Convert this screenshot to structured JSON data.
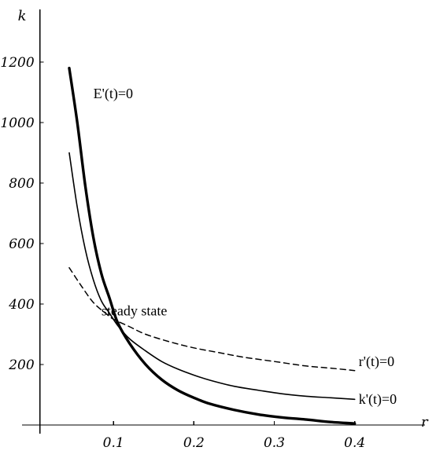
{
  "chart_data": {
    "type": "line",
    "title": "",
    "xlabel": "r",
    "ylabel": "k",
    "xlim": [
      0,
      0.46
    ],
    "ylim": [
      0,
      1200
    ],
    "x_ticks": [
      0.1,
      0.2,
      0.3,
      0.4
    ],
    "x_tick_labels": [
      "0.1",
      "0.2",
      "0.3",
      "0.4"
    ],
    "y_ticks": [
      200,
      400,
      600,
      800,
      1000,
      1200
    ],
    "y_tick_labels": [
      "200",
      "400",
      "600",
      "800",
      "1000",
      "1200"
    ],
    "grid": false,
    "series": [
      {
        "name": "E'(t)=0",
        "line_style": "solid-thick",
        "color": "#000000",
        "x": [
          0.045,
          0.055,
          0.065,
          0.075,
          0.085,
          0.095,
          0.105,
          0.12,
          0.14,
          0.16,
          0.18,
          0.2,
          0.22,
          0.25,
          0.28,
          0.31,
          0.34,
          0.37,
          0.4
        ],
        "y": [
          1180,
          1000,
          790,
          620,
          500,
          420,
          340,
          270,
          200,
          150,
          115,
          90,
          70,
          50,
          35,
          25,
          18,
          10,
          5
        ]
      },
      {
        "name": "k'(t)=0",
        "line_style": "solid-thin",
        "color": "#000000",
        "x": [
          0.045,
          0.055,
          0.065,
          0.075,
          0.085,
          0.095,
          0.105,
          0.12,
          0.14,
          0.16,
          0.18,
          0.2,
          0.22,
          0.25,
          0.28,
          0.31,
          0.34,
          0.37,
          0.4
        ],
        "y": [
          900,
          720,
          580,
          480,
          410,
          370,
          330,
          285,
          245,
          210,
          185,
          165,
          148,
          128,
          115,
          103,
          95,
          90,
          85
        ]
      },
      {
        "name": "r'(t)=0",
        "line_style": "dashed",
        "color": "#000000",
        "x": [
          0.045,
          0.06,
          0.075,
          0.09,
          0.1,
          0.12,
          0.14,
          0.17,
          0.2,
          0.23,
          0.26,
          0.3,
          0.34,
          0.37,
          0.4
        ],
        "y": [
          520,
          460,
          405,
          370,
          350,
          325,
          300,
          275,
          255,
          240,
          225,
          210,
          195,
          188,
          180
        ]
      }
    ],
    "annotations": [
      {
        "text": "E'(t)=0",
        "x": 0.075,
        "y": 1080
      },
      {
        "text": "steady state",
        "x": 0.085,
        "y": 362
      },
      {
        "text": "r'(t)=0",
        "x": 0.405,
        "y": 195
      },
      {
        "text": "k'(t)=0",
        "x": 0.405,
        "y": 70
      }
    ]
  }
}
